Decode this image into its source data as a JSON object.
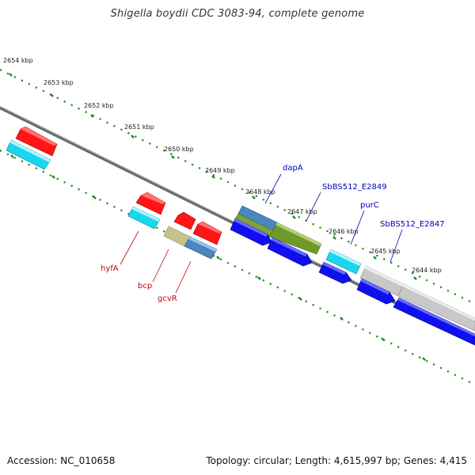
{
  "title": "Shigella boydii CDC 3083-94, complete genome",
  "footer": {
    "accession": "Accession: NC_010658",
    "summary": "Topology: circular; Length: 4,615,997 bp; Genes: 4,415"
  },
  "ticks": [
    {
      "label": "2654 kbp"
    },
    {
      "label": "2653 kbp"
    },
    {
      "label": "2652 kbp"
    },
    {
      "label": "2651 kbp"
    },
    {
      "label": "2650 kbp"
    },
    {
      "label": "2649 kbp"
    },
    {
      "label": "2648 kbp"
    },
    {
      "label": "2647 kbp"
    },
    {
      "label": "2646 kbp"
    },
    {
      "label": "2645 kbp"
    },
    {
      "label": "2644 kbp"
    }
  ],
  "gene_labels": [
    {
      "text": "dapA",
      "color": "#0000bb"
    },
    {
      "text": "SbBS512_E2849",
      "color": "#0000bb"
    },
    {
      "text": "purC",
      "color": "#0000bb"
    },
    {
      "text": "SbBS512_E2847",
      "color": "#0000bb"
    },
    {
      "text": "hyfA",
      "color": "#cc0000"
    },
    {
      "text": "bcp",
      "color": "#cc0000"
    },
    {
      "text": "gcvR",
      "color": "#cc0000"
    }
  ],
  "colors": {
    "backbone": "#7a7a7a",
    "tick": "#1f8a1f",
    "red_gene": "#ff1010",
    "cyan_gene": "#18d8f0",
    "blue_gene": "#1010f0",
    "steel_gene": "#4a88c0",
    "olive_gene": "#6f9a2a",
    "khaki_gene": "#c8c488",
    "gray_gene": "#c8c8c8"
  }
}
